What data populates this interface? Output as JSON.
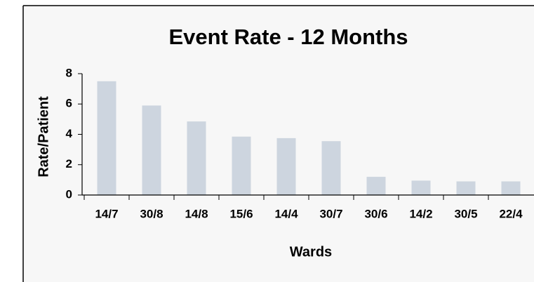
{
  "chart_data": {
    "type": "bar",
    "title": "Event Rate - 12 Months",
    "x_label": "Wards",
    "y_label": "Rate/Patient",
    "categories": [
      "14/7",
      "30/8",
      "14/8",
      "15/6",
      "14/4",
      "30/7",
      "30/6",
      "14/2",
      "30/5",
      "22/4"
    ],
    "values": [
      7.5,
      5.9,
      4.85,
      3.85,
      3.75,
      3.55,
      1.2,
      0.95,
      0.9,
      0.9
    ],
    "color": "#cdd5df",
    "ylim": [
      0,
      8
    ],
    "yticks": [
      0,
      2,
      4,
      6,
      8
    ],
    "grid": false
  }
}
